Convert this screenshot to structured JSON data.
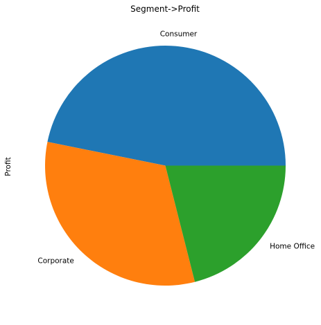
{
  "chart_data": {
    "type": "pie",
    "title": "Segment->Profit",
    "ylabel": "Profit",
    "slices": [
      {
        "label": "Consumer",
        "value": 134119,
        "color": "#1f77b4"
      },
      {
        "label": "Corporate",
        "value": 91979,
        "color": "#ff7f0e"
      },
      {
        "label": "Home Office",
        "value": 60299,
        "color": "#2ca02c"
      }
    ],
    "start_angle": 0,
    "direction": "counterclockwise",
    "legend": "none"
  }
}
